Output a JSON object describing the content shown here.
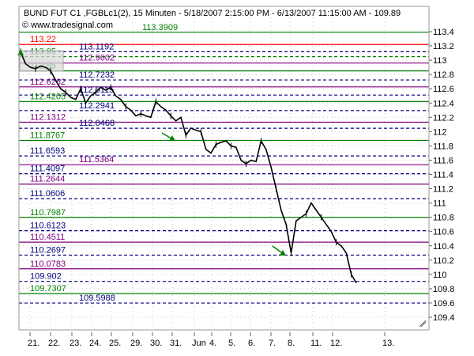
{
  "chart_data": {
    "type": "line",
    "title": "BUND FUT C1 ,FGBLc1(2), 15 Minuten - 5/18/2007 2:15:00 PM - 6/13/2007 11:15:00 AM - 109.89",
    "watermark": "© www.tradesignal.com",
    "ylim": [
      109.2,
      113.6
    ],
    "y_ticks": [
      "113.4",
      "113.2",
      "113",
      "112.8",
      "112.6",
      "112.4",
      "112.2",
      "112",
      "111.8",
      "111.6",
      "111.4",
      "111.2",
      "111",
      "110.8",
      "110.6",
      "110.4",
      "110.2",
      "110",
      "109.8",
      "109.6",
      "109.4"
    ],
    "x_ticks": [
      "21.",
      "22.",
      "23.",
      "24.",
      "25.",
      "29.",
      "30.",
      "31.",
      "Jun",
      "4.",
      "5.",
      "6.",
      "7.",
      "8.",
      "11.",
      "12.",
      "13."
    ],
    "grid": true,
    "levels": [
      {
        "value": "113.3909",
        "color": "#008000",
        "style": "solid"
      },
      {
        "value": "113.22",
        "color": "#ff0000",
        "style": "solid"
      },
      {
        "value": "113.1192",
        "color": "#000080",
        "style": "dashed"
      },
      {
        "value": "113.05",
        "color": "#008000",
        "style": "dashed"
      },
      {
        "value": "112.9602",
        "color": "#800080",
        "style": "solid"
      },
      {
        "value": "112.85",
        "color": "#008000",
        "style": "solid"
      },
      {
        "value": "112.7232",
        "color": "#000080",
        "style": "dashed"
      },
      {
        "value": "112.6262",
        "color": "#800080",
        "style": "solid"
      },
      {
        "value": "112.5115",
        "color": "#000080",
        "style": "dashed"
      },
      {
        "value": "112.4205",
        "color": "#008000",
        "style": "solid"
      },
      {
        "value": "112.2941",
        "color": "#000080",
        "style": "dashed"
      },
      {
        "value": "112.1312",
        "color": "#800080",
        "style": "solid"
      },
      {
        "value": "112.0468",
        "color": "#000080",
        "style": "dashed"
      },
      {
        "value": "111.8767",
        "color": "#008000",
        "style": "solid"
      },
      {
        "value": "111.6593",
        "color": "#000080",
        "style": "dashed"
      },
      {
        "value": "111.5364",
        "color": "#800080",
        "style": "solid"
      },
      {
        "value": "111.4097",
        "color": "#000080",
        "style": "dashed"
      },
      {
        "value": "111.2644",
        "color": "#800080",
        "style": "solid"
      },
      {
        "value": "111.0606",
        "color": "#000080",
        "style": "dashed"
      },
      {
        "value": "110.7987",
        "color": "#008000",
        "style": "solid"
      },
      {
        "value": "110.6123",
        "color": "#000080",
        "style": "dashed"
      },
      {
        "value": "110.4511",
        "color": "#800080",
        "style": "solid"
      },
      {
        "value": "110.2697",
        "color": "#000080",
        "style": "dashed"
      },
      {
        "value": "110.0783",
        "color": "#800080",
        "style": "solid"
      },
      {
        "value": "109.902",
        "color": "#000080",
        "style": "dashed"
      },
      {
        "value": "109.7307",
        "color": "#008000",
        "style": "solid"
      },
      {
        "value": "109.5988",
        "color": "#000080",
        "style": "dashed"
      }
    ],
    "series": [
      {
        "color": "#000000",
        "values": [
          113.12,
          112.95,
          112.9,
          112.88,
          112.92,
          112.9,
          112.85,
          112.72,
          112.6,
          112.55,
          112.48,
          112.45,
          112.6,
          112.4,
          112.5,
          112.55,
          112.62,
          112.58,
          112.62,
          112.5,
          112.45,
          112.35,
          112.3,
          112.22,
          112.25,
          112.22,
          112.2,
          112.42,
          112.35,
          112.3,
          112.22,
          112.15,
          112.2,
          111.95,
          112.05,
          112.02,
          112.0,
          111.75,
          111.7,
          111.82,
          111.85,
          111.87,
          111.8,
          111.78,
          111.6,
          111.55,
          111.6,
          111.58,
          111.87,
          111.75,
          111.5,
          111.2,
          110.9,
          110.7,
          110.3,
          110.75,
          110.8,
          110.85,
          111.0,
          110.9,
          110.8,
          110.7,
          110.6,
          110.45,
          110.4,
          110.3,
          110.0,
          109.88
        ]
      }
    ],
    "signal_arrows": [
      {
        "color": "#008000"
      },
      {
        "color": "#008000"
      },
      {
        "color": "#008000"
      }
    ]
  }
}
